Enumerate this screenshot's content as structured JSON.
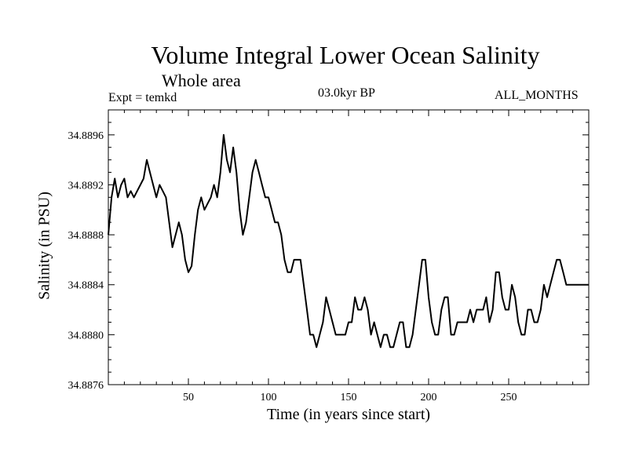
{
  "chart_data": {
    "type": "line",
    "title": "Volume Integral Lower Ocean Salinity",
    "subtitle": "Whole area",
    "annotations": {
      "left": "Expt = temkd",
      "center": "03.0kyr BP",
      "right": "ALL_MONTHS"
    },
    "xlabel": "Time (in years since start)",
    "ylabel": "Salinity (in PSU)",
    "xlim": [
      0,
      300
    ],
    "ylim": [
      34.8876,
      34.8898
    ],
    "xticks": [
      50,
      100,
      150,
      200,
      250
    ],
    "yticks": [
      34.8876,
      34.888,
      34.8884,
      34.8888,
      34.8892,
      34.8896
    ],
    "ytick_labels": [
      "34.8876",
      "34.8880",
      "34.8884",
      "34.8888",
      "34.8892",
      "34.8896"
    ],
    "series": [
      {
        "name": "Salinity",
        "x": [
          0,
          2,
          4,
          6,
          8,
          10,
          12,
          14,
          16,
          18,
          20,
          22,
          24,
          26,
          28,
          30,
          32,
          34,
          36,
          38,
          40,
          42,
          44,
          46,
          48,
          50,
          52,
          54,
          56,
          58,
          60,
          62,
          64,
          66,
          68,
          70,
          72,
          74,
          76,
          78,
          80,
          82,
          84,
          86,
          88,
          90,
          92,
          94,
          96,
          98,
          100,
          102,
          104,
          106,
          108,
          110,
          112,
          114,
          116,
          118,
          120,
          122,
          124,
          126,
          128,
          130,
          132,
          134,
          136,
          138,
          140,
          142,
          144,
          146,
          148,
          150,
          152,
          154,
          156,
          158,
          160,
          162,
          164,
          166,
          168,
          170,
          172,
          174,
          176,
          178,
          180,
          182,
          184,
          186,
          188,
          190,
          192,
          194,
          196,
          198,
          200,
          202,
          204,
          206,
          208,
          210,
          212,
          214,
          216,
          218,
          220,
          222,
          224,
          226,
          228,
          230,
          232,
          234,
          236,
          238,
          240,
          242,
          244,
          246,
          248,
          250,
          252,
          254,
          256,
          258,
          260,
          262,
          264,
          266,
          268,
          270,
          272,
          274,
          276,
          278,
          280,
          282,
          284,
          286,
          288,
          290,
          292,
          294,
          296,
          298,
          300
        ],
        "values": [
          34.8888,
          34.8891,
          34.88925,
          34.8891,
          34.8892,
          34.88925,
          34.8891,
          34.88915,
          34.8891,
          34.88915,
          34.8892,
          34.88925,
          34.8894,
          34.8893,
          34.8892,
          34.8891,
          34.8892,
          34.88915,
          34.8891,
          34.8889,
          34.8887,
          34.8888,
          34.8889,
          34.8888,
          34.8886,
          34.8885,
          34.88855,
          34.8888,
          34.889,
          34.8891,
          34.889,
          34.88905,
          34.8891,
          34.8892,
          34.8891,
          34.8893,
          34.8896,
          34.8894,
          34.8893,
          34.8895,
          34.8893,
          34.889,
          34.8888,
          34.8889,
          34.8891,
          34.8893,
          34.8894,
          34.8893,
          34.8892,
          34.8891,
          34.8891,
          34.889,
          34.8889,
          34.8889,
          34.8888,
          34.8886,
          34.8885,
          34.8885,
          34.8886,
          34.8886,
          34.8886,
          34.8884,
          34.8882,
          34.888,
          34.888,
          34.8879,
          34.888,
          34.8881,
          34.8883,
          34.8882,
          34.8881,
          34.888,
          34.888,
          34.888,
          34.888,
          34.8881,
          34.8881,
          34.8883,
          34.8882,
          34.8882,
          34.8883,
          34.8882,
          34.888,
          34.8881,
          34.888,
          34.8879,
          34.888,
          34.888,
          34.8879,
          34.8879,
          34.888,
          34.8881,
          34.8881,
          34.8879,
          34.8879,
          34.888,
          34.8882,
          34.8884,
          34.8886,
          34.8886,
          34.8883,
          34.8881,
          34.888,
          34.888,
          34.8882,
          34.8883,
          34.8883,
          34.888,
          34.888,
          34.8881,
          34.8881,
          34.8881,
          34.8881,
          34.8882,
          34.8881,
          34.8882,
          34.8882,
          34.8882,
          34.8883,
          34.8881,
          34.8882,
          34.8885,
          34.8885,
          34.8883,
          34.8882,
          34.8882,
          34.8884,
          34.8883,
          34.8881,
          34.888,
          34.888,
          34.8882,
          34.8882,
          34.8881,
          34.8881,
          34.8882,
          34.8884,
          34.8883,
          34.8884,
          34.8885,
          34.8886,
          34.8886,
          34.8885,
          34.8884,
          34.8884,
          34.8884,
          34.8884,
          34.8884,
          34.8884,
          34.8884,
          34.8884
        ]
      }
    ]
  }
}
